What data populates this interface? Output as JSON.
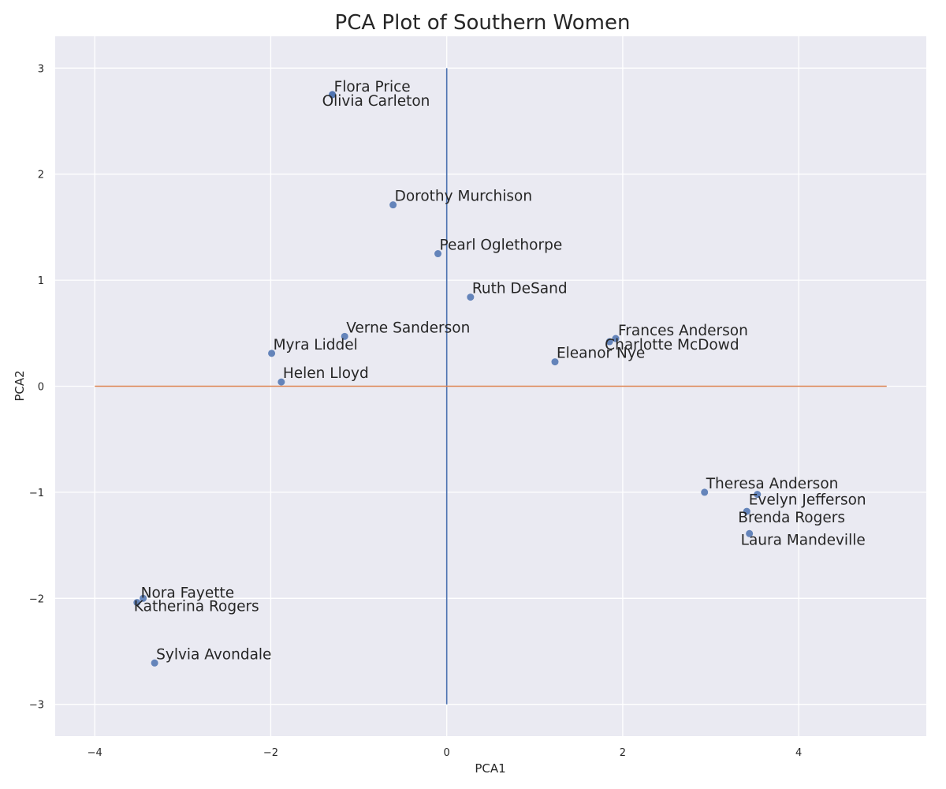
{
  "chart_data": {
    "type": "scatter",
    "title": "PCA Plot of Southern Women",
    "xlabel": "PCA1",
    "ylabel": "PCA2",
    "xlim": [
      -4.45,
      5.45
    ],
    "ylim": [
      -3.3,
      3.3
    ],
    "xticks": [
      -4,
      -2,
      0,
      2,
      4
    ],
    "yticks": [
      -3,
      -2,
      -1,
      0,
      1,
      2,
      3
    ],
    "grid": true,
    "background": "#eaeaf2",
    "point_color": "#4c72b0",
    "reference_lines": [
      {
        "orientation": "vertical",
        "x": 0,
        "y_range": [
          -3,
          3
        ],
        "color": "#4c72b0"
      },
      {
        "orientation": "horizontal",
        "y": 0,
        "x_range": [
          -4,
          5
        ],
        "color": "#dd8452"
      }
    ],
    "points": [
      {
        "name": "Flora Price",
        "x": -1.3,
        "y": 2.75
      },
      {
        "name": "Olivia Carleton",
        "x": -1.3,
        "y": 2.75
      },
      {
        "name": "Dorothy Murchison",
        "x": -0.61,
        "y": 1.71
      },
      {
        "name": "Pearl Oglethorpe",
        "x": -0.1,
        "y": 1.25
      },
      {
        "name": "Ruth DeSand",
        "x": 0.27,
        "y": 0.84
      },
      {
        "name": "Verne Sanderson",
        "x": -1.16,
        "y": 0.47
      },
      {
        "name": "Myra Liddel",
        "x": -1.99,
        "y": 0.31
      },
      {
        "name": "Helen Lloyd",
        "x": -1.88,
        "y": 0.04
      },
      {
        "name": "Frances Anderson",
        "x": 1.92,
        "y": 0.45
      },
      {
        "name": "Charlotte McDowd",
        "x": 1.85,
        "y": 0.42
      },
      {
        "name": "Eleanor Nye",
        "x": 1.23,
        "y": 0.23
      },
      {
        "name": "Theresa Anderson",
        "x": 2.93,
        "y": -1.0
      },
      {
        "name": "Evelyn Jefferson",
        "x": 3.53,
        "y": -1.02
      },
      {
        "name": "Brenda Rogers",
        "x": 3.41,
        "y": -1.18
      },
      {
        "name": "Laura Mandeville",
        "x": 3.44,
        "y": -1.39
      },
      {
        "name": "Nora Fayette",
        "x": -3.45,
        "y": -2.0
      },
      {
        "name": "Katherina Rogers",
        "x": -3.52,
        "y": -2.04
      },
      {
        "name": "Sylvia Avondale",
        "x": -3.32,
        "y": -2.61
      }
    ]
  }
}
